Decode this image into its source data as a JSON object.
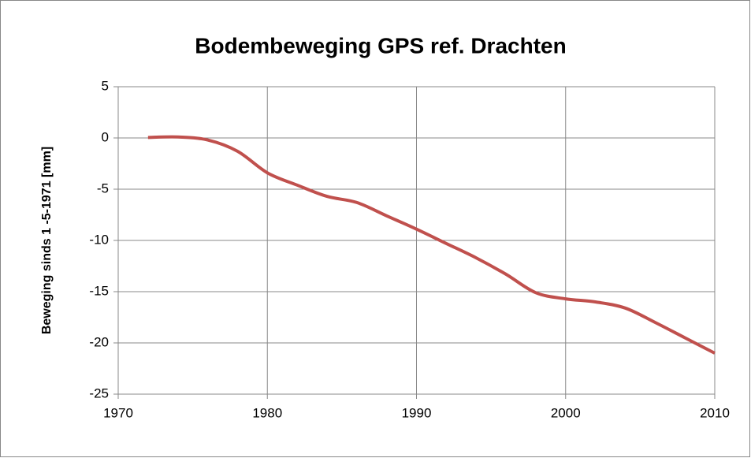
{
  "chart_data": {
    "type": "line",
    "title": "Bodembeweging GPS ref. Drachten",
    "y_label": "Beweging sinds 1 -5-1971 [mm]",
    "series": [
      {
        "color": "#c0504d",
        "x": [
          1972,
          1974,
          1976,
          1978,
          1980,
          1982,
          1984,
          1986,
          1988,
          1990,
          1992,
          1994,
          1996,
          1998,
          2000,
          2002,
          2004,
          2006,
          2008,
          2010
        ],
        "values": [
          0.05,
          0.1,
          -0.2,
          -1.3,
          -3.4,
          -4.6,
          -5.7,
          -6.3,
          -7.6,
          -8.9,
          -10.3,
          -11.7,
          -13.3,
          -15.1,
          -15.7,
          -16.0,
          -16.6,
          -18.0,
          -19.5,
          -21.0
        ]
      }
    ],
    "xlim": [
      1970,
      2010
    ],
    "xticks": [
      1970,
      1980,
      1990,
      2000,
      2010
    ],
    "ylim": [
      -25,
      5
    ],
    "yticks": [
      -25,
      -20,
      -15,
      -10,
      -5,
      0,
      5
    ],
    "grid": true
  }
}
